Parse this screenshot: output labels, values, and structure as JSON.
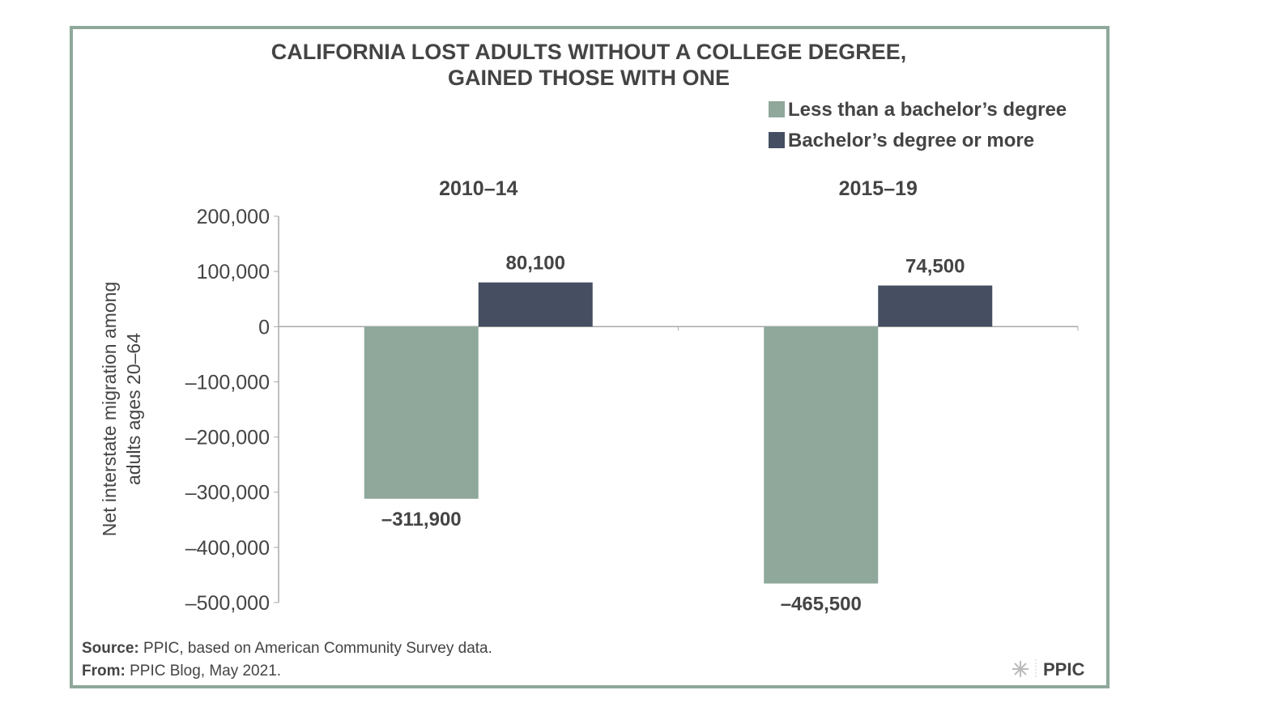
{
  "chart_data": {
    "type": "bar",
    "title": "CALIFORNIA LOST ADULTS WITHOUT A COLLEGE DEGREE,",
    "title_line2": "GAINED THOSE WITH ONE",
    "categories": [
      "2010–14",
      "2015–19"
    ],
    "series": [
      {
        "name": "Less than a bachelor’s degree",
        "color": "#8fa89b",
        "values": [
          -311900,
          -465500
        ],
        "labels": [
          "–311,900",
          "–465,500"
        ]
      },
      {
        "name": "Bachelor’s degree or more",
        "color": "#454f61",
        "values": [
          80100,
          74500
        ],
        "labels": [
          "80,100",
          "74,500"
        ]
      }
    ],
    "ylabel_line1": "Net interstate migration among",
    "ylabel_line2": "adults ages 20–64",
    "ylim": [
      -500000,
      200000
    ],
    "yticks": [
      200000,
      100000,
      0,
      -100000,
      -200000,
      -300000,
      -400000,
      -500000
    ],
    "ytick_labels": [
      "200,000",
      "100,000",
      "0",
      "–100,000",
      "–200,000",
      "–300,000",
      "–400,000",
      "–500,000"
    ],
    "legend_position": "top-right",
    "grid": false
  },
  "footer": {
    "source_label": "Source:",
    "source_text": " PPIC, based on American Community Survey data.",
    "from_label": "From:",
    "from_text": " PPIC Blog, May 2021.",
    "logo": "PPIC"
  }
}
